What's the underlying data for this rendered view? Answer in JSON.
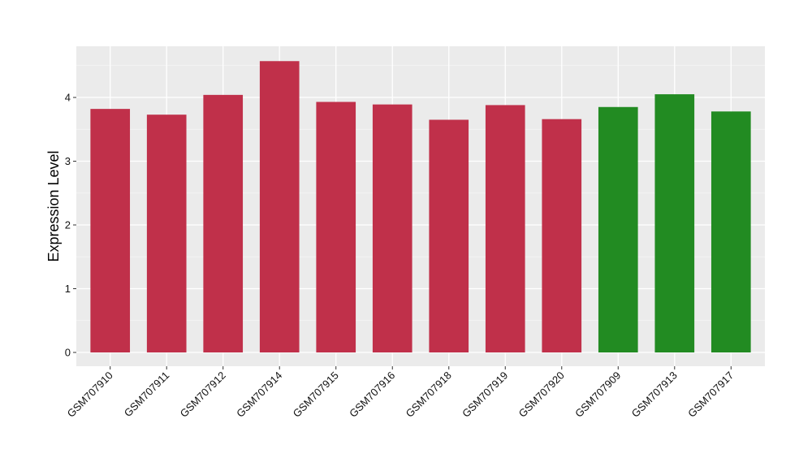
{
  "chart_data": {
    "type": "bar",
    "title": "",
    "xlabel": "",
    "ylabel": "Expression Level",
    "ylim": [
      -0.2,
      4.8
    ],
    "yticks": [
      0,
      1,
      2,
      3,
      4
    ],
    "grid": true,
    "background": "#ebebeb",
    "categories": [
      "GSM707910",
      "GSM707911",
      "GSM707912",
      "GSM707914",
      "GSM707915",
      "GSM707916",
      "GSM707918",
      "GSM707919",
      "GSM707920",
      "GSM707909",
      "GSM707913",
      "GSM707917"
    ],
    "values": [
      3.82,
      3.73,
      4.04,
      4.57,
      3.93,
      3.89,
      3.65,
      3.88,
      3.66,
      3.85,
      4.05,
      3.78
    ],
    "bar_colors": [
      "#c0304a",
      "#c0304a",
      "#c0304a",
      "#c0304a",
      "#c0304a",
      "#c0304a",
      "#c0304a",
      "#c0304a",
      "#c0304a",
      "#228b22",
      "#228b22",
      "#228b22"
    ]
  }
}
